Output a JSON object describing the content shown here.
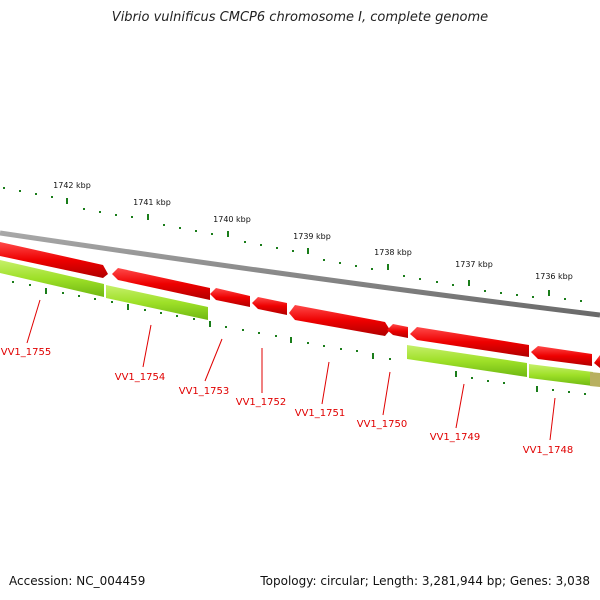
{
  "title": "Vibrio vulnificus CMCP6 chromosome I, complete genome",
  "accession": "Accession: NC_004459",
  "summary": "Topology: circular; Length: 3,281,944 bp; Genes: 3,038",
  "scale_labels": [
    "1742 kbp",
    "1741 kbp",
    "1740 kbp",
    "1739 kbp",
    "1738 kbp",
    "1737 kbp",
    "1736 kbp"
  ],
  "gene_labels": [
    "VV1_1755",
    "VV1_1754",
    "VV1_1753",
    "VV1_1752",
    "VV1_1751",
    "VV1_1750",
    "VV1_1749",
    "VV1_1748"
  ],
  "colors": {
    "backbone": "#7f7f7f",
    "forward_gene": "#e00000",
    "reverse_gene": "#8ed81a",
    "scale_ticks": "#117a11",
    "label": "#e00000"
  }
}
